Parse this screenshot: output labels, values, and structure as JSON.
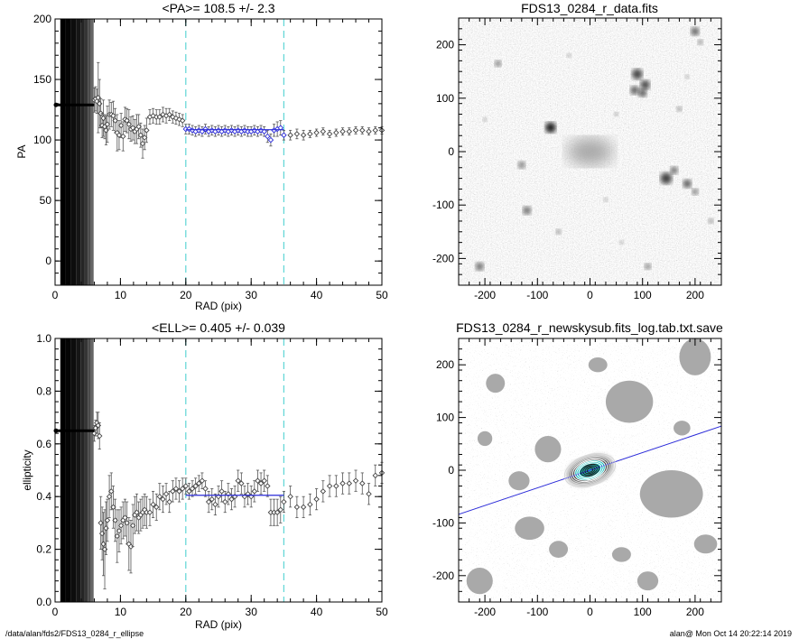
{
  "footer": {
    "left": "/data/alan/fds2/FDS13_0284_r_ellipse",
    "right": "alan@  Mon Oct 14 20:22:14 2019"
  },
  "colors": {
    "accent_line": "#2a2ad8",
    "bounds": "#5fd6d6",
    "fill_dark": "#111111",
    "galaxy_core": "#23c0c0"
  },
  "chart_data": [
    {
      "id": "pa",
      "type": "scatter",
      "title": "<PA>= 108.5 +/-   2.3",
      "xlabel": "RAD (pix)",
      "ylabel": "PA",
      "xlim": [
        0,
        50
      ],
      "ylim": [
        -20,
        200
      ],
      "xticks": [
        0,
        10,
        20,
        30,
        40,
        50
      ],
      "yticks": [
        0,
        50,
        100,
        150,
        200
      ],
      "bounds": [
        20,
        35
      ],
      "mean": 108.5,
      "mean_range": [
        20,
        35
      ],
      "inner_value": 129,
      "inner_range": [
        0,
        6
      ],
      "series": [
        {
          "x": [
            6.0,
            6.2,
            6.4,
            6.6,
            6.8,
            7.0,
            7.2,
            7.4,
            7.6,
            7.8,
            8.0,
            8.3,
            8.6,
            8.9,
            9.2,
            9.5,
            9.8,
            10.1,
            10.4,
            10.7,
            11.0,
            11.3,
            11.6,
            11.9,
            12.2,
            12.5,
            12.8,
            13.1,
            13.4,
            13.7,
            14.0,
            14.5,
            15.0,
            15.5,
            16.0,
            16.5,
            17.0,
            17.5,
            18.0,
            18.5,
            19.0,
            19.5,
            20.0,
            20.5,
            21.0,
            21.5,
            22.0,
            22.5,
            23.0,
            23.5,
            24.0,
            24.5,
            25.0,
            25.5,
            26.0,
            26.5,
            27.0,
            27.5,
            28.0,
            28.5,
            29.0,
            29.5,
            30.0,
            30.5,
            31.0,
            31.5,
            32.0,
            32.5,
            33.0,
            33.5,
            34.0,
            34.5,
            35.0,
            36.0,
            37.0,
            38.0,
            39.0,
            40.0,
            41.0,
            42.0,
            43.0,
            44.0,
            45.0,
            46.0,
            47.0,
            48.0,
            49.0,
            50.0
          ],
          "y": [
            133,
            134,
            132,
            135,
            130,
            122,
            112,
            118,
            111,
            108,
            113,
            121,
            121,
            120,
            116,
            106,
            104,
            112,
            103,
            117,
            116,
            113,
            109,
            110,
            107,
            109,
            111,
            104,
            97,
            102,
            108,
            119,
            120,
            119,
            119,
            121,
            120,
            121,
            119,
            118,
            117,
            116,
            109,
            109,
            108,
            107,
            108,
            107,
            109,
            107,
            108,
            107,
            108,
            107,
            108,
            107,
            108,
            107,
            108,
            107,
            108,
            107,
            107,
            108,
            107,
            108,
            107,
            103,
            100,
            108,
            109,
            110,
            104,
            104,
            105,
            104,
            105,
            106,
            107,
            105,
            106,
            107,
            107,
            108,
            108,
            107,
            108,
            108
          ],
          "err": [
            10,
            10,
            10,
            29,
            20,
            12,
            10,
            15,
            10,
            12,
            15,
            12,
            10,
            12,
            10,
            15,
            12,
            10,
            12,
            10,
            10,
            12,
            10,
            10,
            10,
            12,
            10,
            10,
            12,
            10,
            10,
            6,
            6,
            6,
            6,
            6,
            6,
            5,
            5,
            5,
            5,
            5,
            4,
            4,
            4,
            4,
            4,
            4,
            4,
            4,
            4,
            4,
            4,
            4,
            4,
            4,
            4,
            4,
            4,
            4,
            4,
            4,
            4,
            4,
            4,
            4,
            4,
            5,
            5,
            5,
            6,
            6,
            4,
            4,
            4,
            4,
            3,
            3,
            3,
            3,
            3,
            3,
            3,
            3,
            3,
            3,
            3,
            3
          ]
        }
      ]
    },
    {
      "id": "ell",
      "type": "scatter",
      "title": "<ELL>= 0.405 +/-  0.039",
      "xlabel": "RAD (pix)",
      "ylabel": "ellipticity",
      "xlim": [
        0,
        50
      ],
      "ylim": [
        0.0,
        1.0
      ],
      "xticks": [
        0,
        10,
        20,
        30,
        40,
        50
      ],
      "yticks": [
        0.0,
        0.2,
        0.4,
        0.6,
        0.8,
        1.0
      ],
      "ytick_labels": [
        "0.0",
        "0.2",
        "0.4",
        "0.6",
        "0.8",
        "1.0"
      ],
      "bounds": [
        20,
        35
      ],
      "mean": 0.405,
      "mean_range": [
        20,
        35
      ],
      "inner_value": 0.65,
      "inner_range": [
        0,
        6
      ],
      "series": [
        {
          "x": [
            6.0,
            6.2,
            6.4,
            6.6,
            6.8,
            7.0,
            7.2,
            7.4,
            7.6,
            7.8,
            8.0,
            8.3,
            8.6,
            8.9,
            9.2,
            9.5,
            9.8,
            10.1,
            10.4,
            10.7,
            11.0,
            11.3,
            11.6,
            11.9,
            12.2,
            12.5,
            12.8,
            13.1,
            13.4,
            13.7,
            14.0,
            14.5,
            15.0,
            15.5,
            16.0,
            16.5,
            17.0,
            17.5,
            18.0,
            18.5,
            19.0,
            19.5,
            20.0,
            20.5,
            21.0,
            21.5,
            22.0,
            22.5,
            23.0,
            23.5,
            24.0,
            24.5,
            25.0,
            25.5,
            26.0,
            26.5,
            27.0,
            27.5,
            28.0,
            28.5,
            29.0,
            29.5,
            30.0,
            30.5,
            31.0,
            31.5,
            32.0,
            32.5,
            33.0,
            33.5,
            34.0,
            34.5,
            35.0,
            36.0,
            37.0,
            38.0,
            39.0,
            40.0,
            41.0,
            42.0,
            43.0,
            44.0,
            45.0,
            46.0,
            47.0,
            48.0,
            49.0,
            50.0
          ],
          "y": [
            0.64,
            0.66,
            0.68,
            0.67,
            0.63,
            0.3,
            0.26,
            0.22,
            0.2,
            0.28,
            0.31,
            0.4,
            0.42,
            0.36,
            0.31,
            0.25,
            0.27,
            0.29,
            0.31,
            0.32,
            0.3,
            0.22,
            0.21,
            0.29,
            0.33,
            0.34,
            0.32,
            0.33,
            0.34,
            0.35,
            0.34,
            0.34,
            0.37,
            0.36,
            0.4,
            0.39,
            0.41,
            0.38,
            0.42,
            0.43,
            0.42,
            0.43,
            0.44,
            0.42,
            0.43,
            0.44,
            0.45,
            0.46,
            0.43,
            0.38,
            0.39,
            0.37,
            0.4,
            0.42,
            0.38,
            0.41,
            0.39,
            0.4,
            0.46,
            0.45,
            0.4,
            0.41,
            0.4,
            0.42,
            0.46,
            0.45,
            0.46,
            0.44,
            0.34,
            0.34,
            0.34,
            0.35,
            0.38,
            0.4,
            0.36,
            0.36,
            0.37,
            0.39,
            0.42,
            0.44,
            0.44,
            0.45,
            0.45,
            0.46,
            0.45,
            0.41,
            0.48,
            0.49
          ],
          "err": [
            0.03,
            0.03,
            0.04,
            0.05,
            0.05,
            0.1,
            0.1,
            0.12,
            0.15,
            0.1,
            0.08,
            0.08,
            0.07,
            0.08,
            0.08,
            0.1,
            0.08,
            0.07,
            0.07,
            0.07,
            0.08,
            0.1,
            0.1,
            0.08,
            0.07,
            0.07,
            0.06,
            0.06,
            0.06,
            0.06,
            0.06,
            0.05,
            0.05,
            0.05,
            0.05,
            0.05,
            0.04,
            0.04,
            0.04,
            0.04,
            0.04,
            0.04,
            0.03,
            0.03,
            0.03,
            0.03,
            0.03,
            0.03,
            0.03,
            0.04,
            0.04,
            0.04,
            0.04,
            0.04,
            0.04,
            0.04,
            0.04,
            0.04,
            0.04,
            0.04,
            0.04,
            0.04,
            0.04,
            0.04,
            0.04,
            0.04,
            0.04,
            0.04,
            0.05,
            0.05,
            0.05,
            0.05,
            0.04,
            0.04,
            0.04,
            0.04,
            0.04,
            0.04,
            0.04,
            0.04,
            0.04,
            0.04,
            0.04,
            0.04,
            0.04,
            0.04,
            0.04,
            0.04
          ]
        }
      ]
    },
    {
      "id": "img1",
      "type": "heatmap",
      "title": "FDS13_0284_r_data.fits",
      "xlim": [
        -250,
        250
      ],
      "ylim": [
        -250,
        250
      ],
      "xticks": [
        -200,
        -100,
        0,
        100,
        200
      ],
      "yticks": [
        -200,
        -100,
        0,
        100,
        200
      ],
      "background": "light-gray noise",
      "sources": [
        {
          "x": -75,
          "y": 45,
          "r": 10,
          "dark": 0.9
        },
        {
          "x": 0,
          "y": 0,
          "r": 40,
          "dark": 0.35
        },
        {
          "x": 90,
          "y": 145,
          "r": 10,
          "dark": 0.75
        },
        {
          "x": 105,
          "y": 125,
          "r": 9,
          "dark": 0.75
        },
        {
          "x": 85,
          "y": 115,
          "r": 8,
          "dark": 0.7
        },
        {
          "x": 100,
          "y": 110,
          "r": 8,
          "dark": 0.7
        },
        {
          "x": 145,
          "y": -50,
          "r": 11,
          "dark": 0.75
        },
        {
          "x": 160,
          "y": -35,
          "r": 7,
          "dark": 0.65
        },
        {
          "x": 185,
          "y": -60,
          "r": 8,
          "dark": 0.7
        },
        {
          "x": 200,
          "y": -75,
          "r": 6,
          "dark": 0.6
        },
        {
          "x": -175,
          "y": 165,
          "r": 6,
          "dark": 0.6
        },
        {
          "x": -130,
          "y": -25,
          "r": 7,
          "dark": 0.55
        },
        {
          "x": -120,
          "y": -110,
          "r": 8,
          "dark": 0.6
        },
        {
          "x": -210,
          "y": -215,
          "r": 8,
          "dark": 0.6
        },
        {
          "x": 110,
          "y": -215,
          "r": 6,
          "dark": 0.55
        },
        {
          "x": 200,
          "y": 225,
          "r": 8,
          "dark": 0.65
        },
        {
          "x": 210,
          "y": 205,
          "r": 5,
          "dark": 0.55
        },
        {
          "x": 50,
          "y": 70,
          "r": 4,
          "dark": 0.5
        },
        {
          "x": 170,
          "y": 80,
          "r": 5,
          "dark": 0.5
        },
        {
          "x": -40,
          "y": 180,
          "r": 4,
          "dark": 0.45
        },
        {
          "x": 60,
          "y": -170,
          "r": 4,
          "dark": 0.45
        },
        {
          "x": -60,
          "y": -150,
          "r": 5,
          "dark": 0.5
        },
        {
          "x": 185,
          "y": 140,
          "r": 4,
          "dark": 0.45
        },
        {
          "x": -200,
          "y": 60,
          "r": 4,
          "dark": 0.45
        },
        {
          "x": 230,
          "y": -130,
          "r": 5,
          "dark": 0.5
        },
        {
          "x": 30,
          "y": -90,
          "r": 4,
          "dark": 0.45
        }
      ]
    },
    {
      "id": "img2",
      "type": "heatmap",
      "title": "FDS13_0284_r_newskysub.fits_log.tab.txt.save",
      "xlim": [
        -250,
        250
      ],
      "ylim": [
        -250,
        250
      ],
      "xticks": [
        -200,
        -100,
        0,
        100,
        200
      ],
      "yticks": [
        -200,
        -100,
        0,
        100,
        200
      ],
      "background": "masked gray noise",
      "masks": [
        {
          "x": 75,
          "y": 130,
          "rx": 45,
          "ry": 40
        },
        {
          "x": 155,
          "y": -45,
          "rx": 60,
          "ry": 45
        },
        {
          "x": -80,
          "y": 40,
          "rx": 25,
          "ry": 25
        },
        {
          "x": -135,
          "y": -20,
          "rx": 20,
          "ry": 18
        },
        {
          "x": -115,
          "y": -110,
          "rx": 28,
          "ry": 22
        },
        {
          "x": -210,
          "y": -210,
          "rx": 25,
          "ry": 25
        },
        {
          "x": 110,
          "y": -210,
          "rx": 20,
          "ry": 18
        },
        {
          "x": 200,
          "y": 215,
          "rx": 30,
          "ry": 35
        },
        {
          "x": -180,
          "y": 165,
          "rx": 18,
          "ry": 18
        },
        {
          "x": 60,
          "y": -160,
          "rx": 18,
          "ry": 14
        },
        {
          "x": -60,
          "y": -150,
          "rx": 18,
          "ry": 16
        },
        {
          "x": 220,
          "y": -140,
          "rx": 22,
          "ry": 18
        },
        {
          "x": 175,
          "y": 80,
          "rx": 16,
          "ry": 14
        },
        {
          "x": -200,
          "y": 60,
          "rx": 14,
          "ry": 14
        },
        {
          "x": 15,
          "y": 200,
          "rx": 18,
          "ry": 14
        }
      ],
      "pa_line_deg": 18.5,
      "ellipse_pa_deg": 18.5,
      "ellipse_ell": 0.42,
      "ellipse_radii": [
        6,
        10,
        14,
        18,
        22,
        26,
        30,
        34,
        38,
        42,
        46,
        50
      ]
    }
  ]
}
